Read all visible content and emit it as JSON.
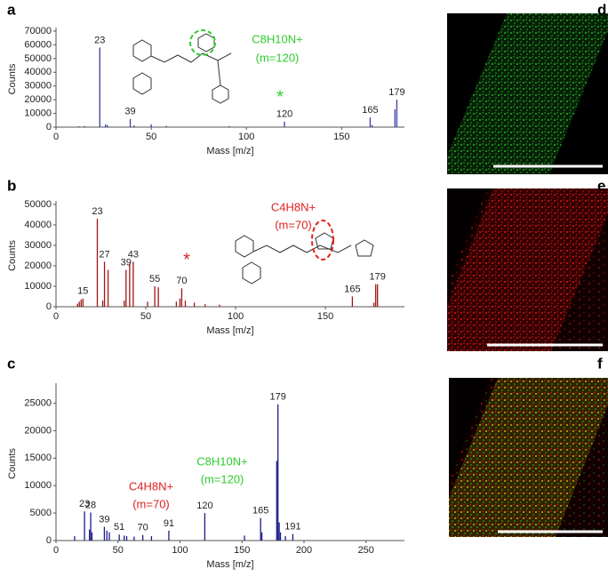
{
  "chart_data": [
    {
      "type": "bar",
      "panel": "a",
      "ylabel": "Counts",
      "xlabel": "Mass [m/z]",
      "color": "#3b3ba6",
      "x": [
        12,
        15,
        23,
        26,
        27,
        39,
        41,
        50,
        58,
        91,
        120,
        165,
        166,
        178,
        179
      ],
      "values": [
        600,
        800,
        58000,
        2000,
        1500,
        6000,
        1200,
        2000,
        900,
        800,
        4000,
        7000,
        1500,
        13000,
        20000
      ],
      "xlim": [
        0,
        183
      ],
      "xticks": [
        0,
        50,
        100,
        150
      ],
      "ylim": [
        0,
        70000
      ],
      "yticks": [
        0,
        10000,
        20000,
        30000,
        40000,
        50000,
        60000,
        70000
      ],
      "labeled_peaks": [
        23,
        39,
        120,
        165,
        179
      ],
      "annotations": [
        {
          "text": "C8H10N+",
          "color": "#2ecc2e"
        },
        {
          "text": "(m=120)",
          "color": "#2ecc2e"
        },
        {
          "text": "*",
          "color": "#2ecc2e"
        }
      ]
    },
    {
      "type": "bar",
      "panel": "b",
      "ylabel": "Counts",
      "xlabel": "Mass [m/z]",
      "color": "#a31515",
      "x": [
        12,
        13,
        14,
        15,
        23,
        26,
        27,
        29,
        38,
        39,
        41,
        43,
        51,
        55,
        57,
        67,
        69,
        70,
        72,
        77,
        83,
        91,
        165,
        177,
        178,
        179
      ],
      "values": [
        1500,
        2500,
        3500,
        4000,
        43000,
        3000,
        22000,
        18000,
        3000,
        18000,
        21000,
        22000,
        2500,
        10000,
        9500,
        2500,
        4000,
        9000,
        3000,
        2000,
        1200,
        1000,
        5000,
        2000,
        11000,
        11000
      ],
      "xlim": [
        0,
        194
      ],
      "xticks": [
        0,
        50,
        100,
        150
      ],
      "ylim": [
        0,
        50000
      ],
      "yticks": [
        0,
        10000,
        20000,
        30000,
        40000,
        50000
      ],
      "labeled_peaks": [
        15,
        23,
        27,
        39,
        43,
        55,
        70,
        165,
        179
      ],
      "annotations": [
        {
          "text": "C4H8N+",
          "color": "#e02020"
        },
        {
          "text": "(m=70)",
          "color": "#e02020"
        },
        {
          "text": "*",
          "color": "#e02020"
        }
      ]
    },
    {
      "type": "bar",
      "panel": "c",
      "ylabel": "Counts",
      "xlabel": "Mass [m/z]",
      "color": "#1c1c8c",
      "x": [
        15,
        23,
        27,
        28,
        29,
        39,
        41,
        43,
        51,
        55,
        57,
        63,
        70,
        77,
        91,
        120,
        152,
        165,
        166,
        178,
        179,
        180,
        181,
        185,
        191
      ],
      "values": [
        800,
        5300,
        2000,
        5100,
        1500,
        2500,
        1800,
        1500,
        1100,
        900,
        800,
        700,
        1000,
        800,
        1800,
        5000,
        900,
        4100,
        1500,
        14500,
        24800,
        3300,
        1500,
        800,
        1200
      ],
      "xlim": [
        0,
        281
      ],
      "xticks": [
        0,
        50,
        100,
        150,
        200,
        250
      ],
      "ylim": [
        0,
        28000
      ],
      "yticks": [
        0,
        5000,
        10000,
        15000,
        20000,
        25000
      ],
      "labeled_peaks": [
        23,
        28,
        39,
        51,
        70,
        91,
        120,
        165,
        179,
        191
      ],
      "annotations": [
        {
          "text": "C4H8N+",
          "color": "#e02020"
        },
        {
          "text": "(m=70)",
          "color": "#e02020"
        },
        {
          "text": "C8H10N+",
          "color": "#2ecc2e"
        },
        {
          "text": "(m=120)",
          "color": "#2ecc2e"
        }
      ]
    }
  ],
  "images": [
    {
      "panel": "d"
    },
    {
      "panel": "e"
    },
    {
      "panel": "f"
    }
  ]
}
